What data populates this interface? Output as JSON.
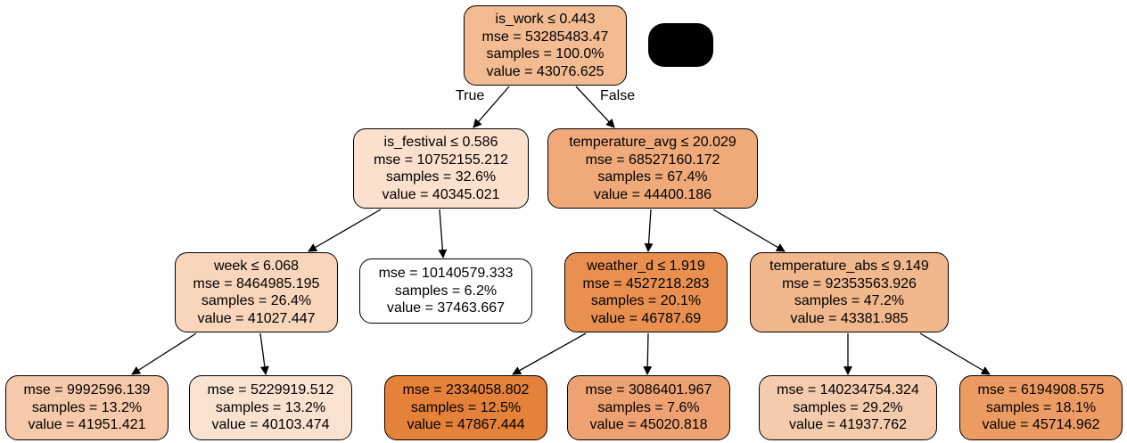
{
  "tree": {
    "edge_labels": {
      "true_label": "True",
      "false_label": "False"
    },
    "nodes": {
      "n0": {
        "lines": [
          "is_work ≤ 0.443",
          "mse = 53285483.47",
          "samples = 100.0%",
          "value = 43076.625"
        ],
        "fill": "#f2bb91"
      },
      "n1": {
        "lines": [
          "is_festival ≤ 0.586",
          "mse = 10752155.212",
          "samples = 32.6%",
          "value = 40345.021"
        ],
        "fill": "#fbe0cd"
      },
      "n2": {
        "lines": [
          "temperature_avg ≤ 20.029",
          "mse = 68527160.172",
          "samples = 67.4%",
          "value = 44400.186"
        ],
        "fill": "#f0aa79"
      },
      "n3": {
        "lines": [
          "week ≤ 6.068",
          "mse = 8464985.195",
          "samples = 26.4%",
          "value = 41027.447"
        ],
        "fill": "#f8d5bb"
      },
      "n4": {
        "lines": [
          "mse = 10140579.333",
          "samples = 6.2%",
          "value = 37463.667"
        ],
        "fill": "#ffffff"
      },
      "n5": {
        "lines": [
          "weather_d ≤ 1.919",
          "mse = 4527218.283",
          "samples = 20.1%",
          "value = 46787.69"
        ],
        "fill": "#e99050"
      },
      "n6": {
        "lines": [
          "temperature_abs ≤ 9.149",
          "mse = 92353563.926",
          "samples = 47.2%",
          "value = 43381.985"
        ],
        "fill": "#f1b78d"
      },
      "n7": {
        "lines": [
          "mse = 9992596.139",
          "samples = 13.2%",
          "value = 41951.421"
        ],
        "fill": "#f5c9a9"
      },
      "n8": {
        "lines": [
          "mse = 5229919.512",
          "samples = 13.2%",
          "value = 40103.474"
        ],
        "fill": "#fae2d1"
      },
      "n9": {
        "lines": [
          "mse = 2334058.802",
          "samples = 12.5%",
          "value = 47867.444"
        ],
        "fill": "#e58139"
      },
      "n10": {
        "lines": [
          "mse = 3086401.967",
          "samples = 7.6%",
          "value = 45020.818"
        ],
        "fill": "#eea272"
      },
      "n11": {
        "lines": [
          "mse = 140234754.324",
          "samples = 29.2%",
          "value = 41937.762"
        ],
        "fill": "#f5cbad"
      },
      "n12": {
        "lines": [
          "mse = 6194908.575",
          "samples = 18.1%",
          "value = 45714.962"
        ],
        "fill": "#ec9c63"
      }
    },
    "edges": [
      [
        "n0",
        "n1"
      ],
      [
        "n0",
        "n2"
      ],
      [
        "n1",
        "n3"
      ],
      [
        "n1",
        "n4"
      ],
      [
        "n2",
        "n5"
      ],
      [
        "n2",
        "n6"
      ],
      [
        "n3",
        "n7"
      ],
      [
        "n3",
        "n8"
      ],
      [
        "n5",
        "n9"
      ],
      [
        "n5",
        "n10"
      ],
      [
        "n6",
        "n11"
      ],
      [
        "n6",
        "n12"
      ]
    ]
  }
}
